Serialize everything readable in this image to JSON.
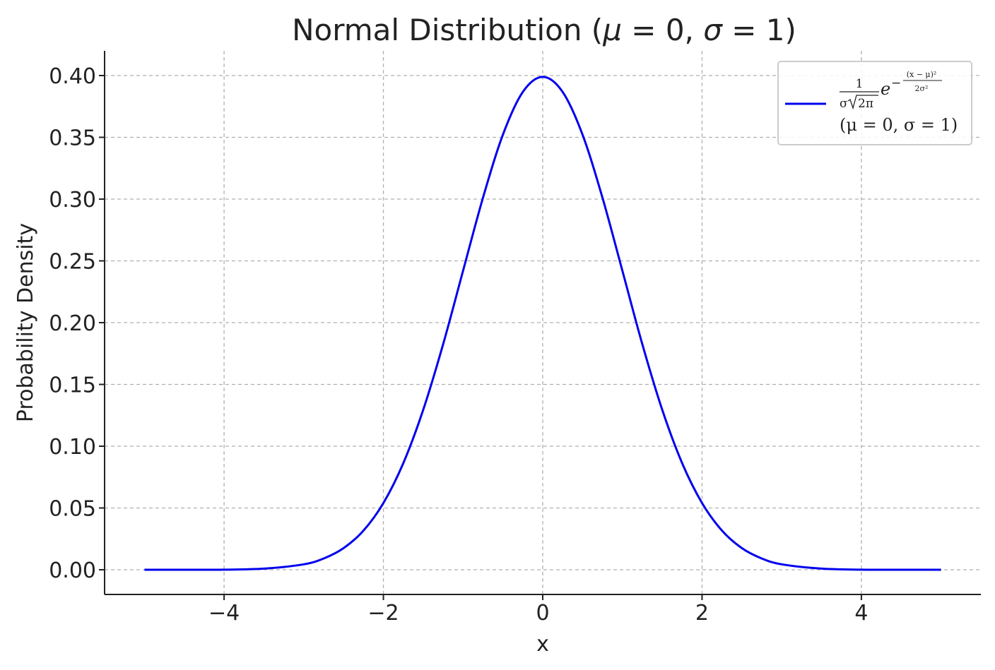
{
  "chart_data": {
    "type": "line",
    "title_parts": [
      "Normal Distribution (",
      "μ",
      " = 0, ",
      "σ",
      " = 1)"
    ],
    "xlabel": "x",
    "ylabel": "Probability Density",
    "xlim": [
      -5.5,
      5.5
    ],
    "ylim": [
      -0.02,
      0.42
    ],
    "xticks": [
      -4,
      -2,
      0,
      2,
      4
    ],
    "xtick_labels": [
      "−4",
      "−2",
      "0",
      "2",
      "4"
    ],
    "yticks": [
      0.0,
      0.05,
      0.1,
      0.15,
      0.2,
      0.25,
      0.3,
      0.35,
      0.4
    ],
    "ytick_labels": [
      "0.00",
      "0.05",
      "0.10",
      "0.15",
      "0.20",
      "0.25",
      "0.30",
      "0.35",
      "0.40"
    ],
    "grid": true,
    "legend_position": "top-right",
    "series": [
      {
        "color": "#0000ee",
        "x": [
          -5.0,
          -4.5,
          -4.0,
          -3.5,
          -3.0,
          -2.75,
          -2.5,
          -2.25,
          -2.0,
          -1.75,
          -1.5,
          -1.25,
          -1.0,
          -0.75,
          -0.5,
          -0.25,
          0.0,
          0.25,
          0.5,
          0.75,
          1.0,
          1.25,
          1.5,
          1.75,
          2.0,
          2.25,
          2.5,
          2.75,
          3.0,
          3.5,
          4.0,
          4.5,
          5.0
        ],
        "y": [
          0.0,
          0.0,
          0.0001,
          0.0009,
          0.0044,
          0.0091,
          0.0175,
          0.0317,
          0.054,
          0.0863,
          0.1295,
          0.1826,
          0.242,
          0.3011,
          0.3521,
          0.3867,
          0.3989,
          0.3867,
          0.3521,
          0.3011,
          0.242,
          0.1826,
          0.1295,
          0.0863,
          0.054,
          0.0317,
          0.0175,
          0.0091,
          0.0044,
          0.0009,
          0.0001,
          0.0,
          0.0
        ]
      }
    ],
    "legend": {
      "formula_one": "1",
      "formula_den_sigma": "σ",
      "formula_den_sqrt": "2π",
      "formula_e": "e",
      "formula_minus": "−",
      "formula_exp_num": "(x − μ)²",
      "formula_exp_den": "2σ²",
      "params": "(μ = 0, σ = 1)"
    }
  }
}
